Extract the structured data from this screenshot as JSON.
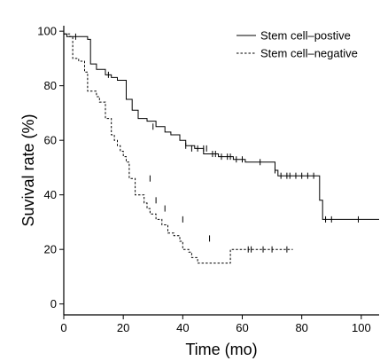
{
  "chart_data": {
    "type": "line",
    "title": "",
    "xlabel": "Time (mo)",
    "ylabel": "Suvival rate (%)",
    "xlim": [
      0,
      106
    ],
    "ylim": [
      -4,
      102
    ],
    "xticks": [
      0,
      20,
      40,
      60,
      80,
      100
    ],
    "yticks": [
      0,
      20,
      40,
      60,
      80,
      100
    ],
    "grid": false,
    "legend_position": "top-right",
    "series": [
      {
        "name": "Stem cell–postive",
        "line_style": "solid",
        "color": "#000000",
        "steps": [
          [
            0,
            99
          ],
          [
            1,
            98
          ],
          [
            8,
            97
          ],
          [
            9,
            88
          ],
          [
            11,
            86
          ],
          [
            14,
            84
          ],
          [
            16,
            83
          ],
          [
            18,
            82
          ],
          [
            21,
            75
          ],
          [
            23,
            71
          ],
          [
            25,
            68
          ],
          [
            28,
            67
          ],
          [
            31,
            65
          ],
          [
            34,
            63
          ],
          [
            36,
            62
          ],
          [
            39,
            60
          ],
          [
            41,
            58
          ],
          [
            44,
            57
          ],
          [
            47,
            55
          ],
          [
            52,
            54
          ],
          [
            57,
            53
          ],
          [
            61,
            52
          ],
          [
            66,
            52
          ],
          [
            71,
            49
          ],
          [
            72,
            47
          ],
          [
            79,
            47
          ],
          [
            86,
            38
          ],
          [
            87,
            31
          ],
          [
            106,
            31
          ]
        ],
        "censor_marks": [
          [
            4,
            98
          ],
          [
            15,
            84
          ],
          [
            30,
            65
          ],
          [
            41,
            58
          ],
          [
            43,
            57
          ],
          [
            45,
            57
          ],
          [
            47,
            57
          ],
          [
            48,
            57
          ],
          [
            50,
            55
          ],
          [
            51,
            55
          ],
          [
            53,
            54
          ],
          [
            55,
            54
          ],
          [
            56,
            54
          ],
          [
            58,
            53
          ],
          [
            60,
            53
          ],
          [
            66,
            52
          ],
          [
            71,
            49
          ],
          [
            73,
            47
          ],
          [
            75,
            47
          ],
          [
            76,
            47
          ],
          [
            78,
            47
          ],
          [
            80,
            47
          ],
          [
            82,
            47
          ],
          [
            84,
            47
          ],
          [
            88,
            31
          ],
          [
            90,
            31
          ],
          [
            99,
            31
          ]
        ]
      },
      {
        "name": "Stem cell–negative",
        "line_style": "dashed",
        "color": "#000000",
        "steps": [
          [
            0,
            99
          ],
          [
            2,
            98
          ],
          [
            3,
            90
          ],
          [
            5,
            89
          ],
          [
            7,
            85
          ],
          [
            8,
            78
          ],
          [
            11,
            76
          ],
          [
            12,
            74
          ],
          [
            14,
            68
          ],
          [
            16,
            62
          ],
          [
            17,
            60
          ],
          [
            18,
            58
          ],
          [
            19,
            56
          ],
          [
            20,
            54
          ],
          [
            21,
            52
          ],
          [
            22,
            46
          ],
          [
            24,
            40
          ],
          [
            27,
            37
          ],
          [
            28,
            35
          ],
          [
            29,
            33
          ],
          [
            31,
            31
          ],
          [
            33,
            29
          ],
          [
            35,
            26
          ],
          [
            37,
            25
          ],
          [
            39,
            23
          ],
          [
            40,
            20
          ],
          [
            42,
            19
          ],
          [
            43,
            17
          ],
          [
            45,
            15
          ],
          [
            50,
            15
          ],
          [
            56,
            20
          ],
          [
            77,
            20
          ]
        ],
        "censor_marks": [
          [
            29,
            46
          ],
          [
            31,
            38
          ],
          [
            34,
            35
          ],
          [
            40,
            31
          ],
          [
            49,
            24
          ],
          [
            62,
            20
          ],
          [
            63,
            20
          ],
          [
            67,
            20
          ],
          [
            70,
            20
          ],
          [
            75,
            20
          ]
        ]
      }
    ]
  }
}
